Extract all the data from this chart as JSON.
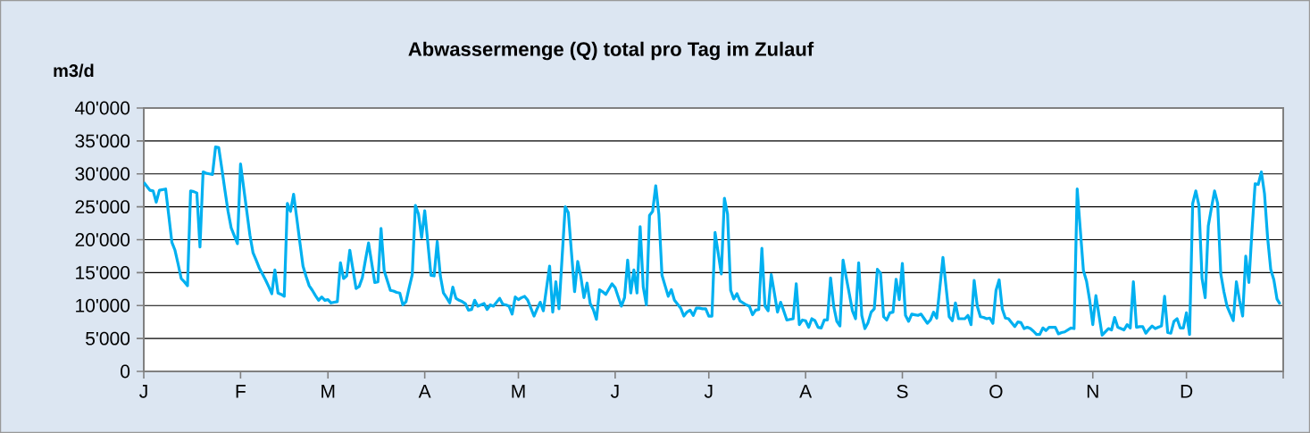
{
  "chart_data": {
    "type": "line",
    "title": "Abwassermenge (Q) total pro Tag im Zulauf",
    "ylabel": "m3/d",
    "categories": [
      "J",
      null,
      null,
      null,
      null,
      null,
      null,
      null,
      null,
      null,
      null,
      null,
      null,
      null,
      null,
      null,
      null,
      null,
      null,
      null,
      null,
      null,
      null,
      null,
      null,
      null,
      null,
      null,
      null,
      null,
      null,
      "F",
      null,
      null,
      null,
      null,
      null,
      null,
      null,
      null,
      null,
      null,
      null,
      null,
      null,
      null,
      null,
      null,
      null,
      null,
      null,
      null,
      null,
      null,
      null,
      null,
      null,
      null,
      null,
      "M",
      null,
      null,
      null,
      null,
      null,
      null,
      null,
      null,
      null,
      null,
      null,
      null,
      null,
      null,
      null,
      null,
      null,
      null,
      null,
      null,
      null,
      null,
      null,
      null,
      null,
      null,
      null,
      null,
      null,
      null,
      "A",
      null,
      null,
      null,
      null,
      null,
      null,
      null,
      null,
      null,
      null,
      null,
      null,
      null,
      null,
      null,
      null,
      null,
      null,
      null,
      null,
      null,
      null,
      null,
      null,
      null,
      null,
      null,
      null,
      null,
      "M",
      null,
      null,
      null,
      null,
      null,
      null,
      null,
      null,
      null,
      null,
      null,
      null,
      null,
      null,
      null,
      null,
      null,
      null,
      null,
      null,
      null,
      null,
      null,
      null,
      null,
      null,
      null,
      null,
      null,
      null,
      "J",
      null,
      null,
      null,
      null,
      null,
      null,
      null,
      null,
      null,
      null,
      null,
      null,
      null,
      null,
      null,
      null,
      null,
      null,
      null,
      null,
      null,
      null,
      null,
      null,
      null,
      null,
      null,
      null,
      null,
      "J",
      null,
      null,
      null,
      null,
      null,
      null,
      null,
      null,
      null,
      null,
      null,
      null,
      null,
      null,
      null,
      null,
      null,
      null,
      null,
      null,
      null,
      null,
      null,
      null,
      null,
      null,
      null,
      null,
      null,
      null,
      "A",
      null,
      null,
      null,
      null,
      null,
      null,
      null,
      null,
      null,
      null,
      null,
      null,
      null,
      null,
      null,
      null,
      null,
      null,
      null,
      null,
      null,
      null,
      null,
      null,
      null,
      null,
      null,
      null,
      null,
      null,
      "S",
      null,
      null,
      null,
      null,
      null,
      null,
      null,
      null,
      null,
      null,
      null,
      null,
      null,
      null,
      null,
      null,
      null,
      null,
      null,
      null,
      null,
      null,
      null,
      null,
      null,
      null,
      null,
      null,
      null,
      "O",
      null,
      null,
      null,
      null,
      null,
      null,
      null,
      null,
      null,
      null,
      null,
      null,
      null,
      null,
      null,
      null,
      null,
      null,
      null,
      null,
      null,
      null,
      null,
      null,
      null,
      null,
      null,
      null,
      null,
      null,
      "N",
      null,
      null,
      null,
      null,
      null,
      null,
      null,
      null,
      null,
      null,
      null,
      null,
      null,
      null,
      null,
      null,
      null,
      null,
      null,
      null,
      null,
      null,
      null,
      null,
      null,
      null,
      null,
      null,
      null,
      "D",
      null,
      null,
      null,
      null,
      null,
      null,
      null,
      null,
      null,
      null,
      null,
      null,
      null,
      null,
      null,
      null,
      null,
      null,
      null,
      null,
      null,
      null,
      null,
      null,
      null,
      null,
      null,
      null,
      null,
      null
    ],
    "series": [
      {
        "color": "#00b0f0",
        "values": [
          28700,
          28100,
          27500,
          27400,
          25700,
          27500,
          27600,
          27700,
          23700,
          19600,
          18400,
          16300,
          14100,
          13600,
          13000,
          27400,
          27300,
          27100,
          18900,
          30300,
          30100,
          30000,
          29900,
          34100,
          34000,
          30800,
          27500,
          24300,
          21800,
          20600,
          19400,
          31500,
          27900,
          24300,
          20700,
          18000,
          16900,
          15700,
          14800,
          13900,
          12900,
          11800,
          15400,
          11900,
          11700,
          11400,
          25500,
          24300,
          26900,
          23300,
          19600,
          16000,
          14400,
          13000,
          12300,
          11500,
          10800,
          11300,
          10800,
          10900,
          10400,
          10500,
          10600,
          16500,
          14100,
          14500,
          18400,
          15500,
          12600,
          12900,
          14200,
          16900,
          19500,
          16500,
          13500,
          13600,
          21700,
          15300,
          13800,
          12300,
          12200,
          12000,
          11900,
          10100,
          10600,
          12700,
          14700,
          25200,
          23900,
          20300,
          24400,
          19500,
          14600,
          14500,
          19700,
          14500,
          11900,
          11200,
          10400,
          12800,
          11100,
          10800,
          10600,
          10300,
          9300,
          9400,
          10800,
          9900,
          10100,
          10300,
          9400,
          10100,
          9900,
          10500,
          11100,
          10200,
          10100,
          9900,
          8700,
          11300,
          10900,
          11200,
          11400,
          10800,
          9600,
          8400,
          9500,
          10500,
          9200,
          12600,
          16000,
          9000,
          13600,
          9500,
          17300,
          25000,
          24100,
          18100,
          12100,
          16700,
          14400,
          11200,
          13400,
          10300,
          9400,
          7900,
          12400,
          12100,
          11700,
          12500,
          13300,
          12700,
          11300,
          9900,
          11200,
          16900,
          11900,
          15400,
          11900,
          22000,
          12800,
          10100,
          23700,
          24300,
          28200,
          23900,
          14600,
          13000,
          11400,
          12400,
          10800,
          10200,
          9600,
          8400,
          9000,
          9300,
          8500,
          9600,
          9600,
          9500,
          9500,
          8400,
          8400,
          21100,
          18000,
          14800,
          26300,
          23900,
          12300,
          11000,
          11800,
          10700,
          10400,
          10100,
          9900,
          8600,
          9300,
          9400,
          18700,
          9900,
          9200,
          14700,
          11900,
          9000,
          10500,
          9200,
          7800,
          7900,
          8000,
          13300,
          7100,
          7800,
          7700,
          6700,
          8000,
          7700,
          6700,
          6600,
          7800,
          7800,
          14200,
          9900,
          7600,
          6900,
          16900,
          14300,
          11800,
          9200,
          8000,
          16500,
          8500,
          6500,
          7400,
          9000,
          9500,
          15500,
          14900,
          8300,
          7800,
          8900,
          9000,
          14000,
          10900,
          16400,
          8500,
          7600,
          8700,
          8600,
          8500,
          8700,
          8000,
          7300,
          7800,
          9000,
          8100,
          12700,
          17300,
          12800,
          8300,
          7700,
          10400,
          8000,
          8000,
          8000,
          8500,
          7100,
          13800,
          9900,
          8300,
          8200,
          8000,
          8100,
          7300,
          12300,
          13900,
          9500,
          8100,
          8000,
          7400,
          6800,
          7500,
          7400,
          6500,
          6700,
          6500,
          6100,
          5600,
          5600,
          6600,
          6200,
          6700,
          6700,
          6700,
          5700,
          5900,
          6000,
          6300,
          6600,
          6500,
          27700,
          21500,
          15300,
          13700,
          10800,
          7100,
          11500,
          8500,
          5500,
          6000,
          6500,
          6300,
          8200,
          6700,
          6500,
          6300,
          7100,
          6600,
          13600,
          6700,
          6800,
          6800,
          5800,
          6400,
          6900,
          6500,
          6700,
          6900,
          11400,
          5900,
          5800,
          7600,
          8000,
          6600,
          6600,
          8900,
          5600,
          25500,
          27400,
          25200,
          14100,
          11200,
          22100,
          24800,
          27400,
          25500,
          14800,
          12100,
          9900,
          8800,
          7700,
          13600,
          10800,
          8400,
          17500,
          13500,
          21400,
          28500,
          28400,
          30300,
          27000,
          20300,
          15500,
          13900,
          11000,
          10200
        ]
      }
    ],
    "ylim": [
      0,
      40000
    ],
    "yticks": [
      0,
      {
        "value": 5000,
        "label": "5'000"
      },
      {
        "value": 10000,
        "label": "10'000"
      },
      {
        "value": 15000,
        "label": "15'000"
      },
      {
        "value": 20000,
        "label": "20'000"
      },
      {
        "value": 25000,
        "label": "25'000"
      },
      {
        "value": 30000,
        "label": "30'000"
      },
      {
        "value": 35000,
        "label": "35'000"
      },
      {
        "value": 40000,
        "label": "40'000"
      }
    ],
    "grid": "y"
  }
}
